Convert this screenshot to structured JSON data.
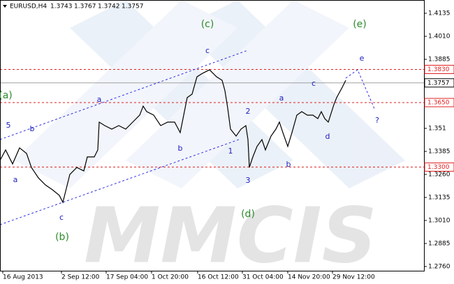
{
  "chart_data": {
    "type": "line",
    "title": "EURUSD,H4",
    "ohlc": [
      1.3743,
      1.3767,
      1.3742,
      1.3757
    ],
    "color": "#000000",
    "x": [
      0,
      8,
      18,
      28,
      38,
      45,
      55,
      65,
      75,
      85,
      90,
      95,
      100,
      110,
      120,
      125,
      135,
      140,
      142,
      150,
      160,
      170,
      180,
      190,
      200,
      205,
      210,
      220,
      230,
      240,
      250,
      258,
      262,
      268,
      275,
      282,
      290,
      300,
      310,
      318,
      322,
      326,
      330,
      338,
      345,
      352,
      355,
      357,
      362,
      368,
      375,
      380,
      388,
      395,
      400,
      405,
      412,
      418,
      425,
      432,
      440,
      448,
      455,
      460,
      465,
      470,
      478,
      482,
      490,
      495
    ],
    "values": [
      1.3336,
      1.3393,
      1.3317,
      1.3404,
      1.3374,
      1.3298,
      1.3241,
      1.3203,
      1.3177,
      1.3146,
      1.3108,
      1.3184,
      1.326,
      1.3298,
      1.3279,
      1.3355,
      1.3355,
      1.3393,
      1.3544,
      1.3525,
      1.3506,
      1.3525,
      1.3506,
      1.3544,
      1.3582,
      1.3631,
      1.3601,
      1.3582,
      1.3525,
      1.3544,
      1.3544,
      1.3487,
      1.3563,
      1.3677,
      1.3696,
      1.379,
      1.3809,
      1.3828,
      1.379,
      1.3771,
      1.3715,
      1.362,
      1.3506,
      1.3468,
      1.3506,
      1.3525,
      1.3449,
      1.3298,
      1.3355,
      1.3412,
      1.3449,
      1.3393,
      1.3468,
      1.3506,
      1.3544,
      1.3487,
      1.3412,
      1.3487,
      1.3582,
      1.3601,
      1.3582,
      1.3582,
      1.3563,
      1.3601,
      1.3563,
      1.3544,
      1.3639,
      1.3677,
      1.3733,
      1.3771
    ],
    "xlim": [
      0,
      607
    ],
    "ylim": [
      1.2737,
      1.4207
    ],
    "xticks": [
      {
        "value": 4,
        "label": "16 Aug 2013"
      },
      {
        "value": 88,
        "label": "2 Sep 12:00"
      },
      {
        "value": 152,
        "label": "17 Sep 04:00"
      },
      {
        "value": 217,
        "label": "1 Oct 20:00"
      },
      {
        "value": 283,
        "label": "16 Oct 12:00"
      },
      {
        "value": 347,
        "label": "31 Oct 04:00"
      },
      {
        "value": 412,
        "label": "14 Nov 20:00"
      },
      {
        "value": 476,
        "label": "29 Nov 12:00"
      }
    ],
    "yticks": [
      1.4135,
      {
        "value": 1.401,
        "label": "1.4010"
      },
      1.3885,
      1.351,
      1.3385,
      {
        "value": 1.326,
        "label": "1.3260"
      },
      1.3135,
      {
        "value": 1.301,
        "label": "1.3010"
      },
      1.2885,
      {
        "value": 1.276,
        "label": "1.2760"
      }
    ],
    "levels": [
      {
        "value": 1.383,
        "label": "1.3830",
        "color": "#e02020"
      },
      {
        "value": 1.365,
        "label": "1.3650",
        "color": "#e02020"
      },
      {
        "value": 1.33,
        "label": "1.3300",
        "color": "#e02020"
      }
    ],
    "last_price": {
      "value": 1.3757,
      "label": "1.3757",
      "color": "#a0a0a0"
    },
    "annotations": [
      {
        "text": "(c)",
        "color": "#2e8b2e"
      },
      {
        "text": "(e)",
        "color": "#2e8b2e"
      },
      {
        "text": "c",
        "color": "#2020c0"
      },
      {
        "text": "e",
        "color": "#2020c0"
      },
      {
        "text": "(a)",
        "color": "#2e8b2e"
      },
      {
        "text": "a",
        "color": "#2020c0"
      },
      {
        "text": "5",
        "color": "#2020c0"
      },
      {
        "text": "b",
        "color": "#2020c0"
      },
      {
        "text": "2",
        "color": "#2020c0"
      },
      {
        "text": "a",
        "color": "#2020c0"
      },
      {
        "text": "c",
        "color": "#2020c0"
      },
      {
        "text": "?",
        "color": "#2020c0"
      },
      {
        "text": "b",
        "color": "#2020c0"
      },
      {
        "text": "1",
        "color": "#2020c0"
      },
      {
        "text": "d",
        "color": "#2020c0"
      },
      {
        "text": "a",
        "color": "#2020c0"
      },
      {
        "text": "b",
        "color": "#2020c0"
      },
      {
        "text": "3",
        "color": "#2020c0"
      },
      {
        "text": "c",
        "color": "#2020c0"
      },
      {
        "text": "(b)",
        "color": "#2e8b2e"
      },
      {
        "text": "(d)",
        "color": "#2e8b2e"
      }
    ],
    "watermark": "MMCIS"
  }
}
